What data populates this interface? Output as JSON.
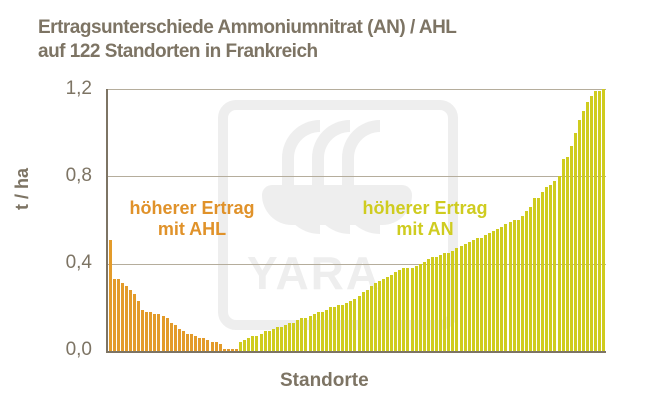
{
  "chart_data": {
    "type": "bar",
    "title": "Ertragsunterschiede Ammoniumnitrat  (AN) / AHL auf 122 Standorten in Frankreich",
    "title_lines": [
      "Ertragsunterschiede Ammoniumnitrat  (AN) / AHL",
      "auf 122 Standorten in Frankreich"
    ],
    "xlabel": "Standorte",
    "ylabel": "t / ha",
    "ylim": [
      0,
      1.2
    ],
    "yticks": [
      "0,0",
      "0,4",
      "0,8",
      "1,2"
    ],
    "grid": true,
    "n_sites": 122,
    "annotations": [
      {
        "text_lines": [
          "höherer Ertrag",
          "mit AHL"
        ],
        "color": "#e0922a"
      },
      {
        "text_lines": [
          "höherer Ertrag",
          "mit AN"
        ],
        "color": "#cfcc20"
      }
    ],
    "series": [
      {
        "name": "höherer Ertrag mit AHL",
        "color": "#e39b2a",
        "values": [
          0.51,
          0.33,
          0.33,
          0.31,
          0.3,
          0.28,
          0.26,
          0.23,
          0.19,
          0.18,
          0.18,
          0.17,
          0.17,
          0.16,
          0.15,
          0.13,
          0.12,
          0.1,
          0.09,
          0.08,
          0.08,
          0.07,
          0.06,
          0.06,
          0.05,
          0.04,
          0.04,
          0.03,
          0.01,
          0.01,
          0.01,
          0.01
        ]
      },
      {
        "name": "höherer Ertrag mit AN",
        "color": "#cfcc1e",
        "values": [
          0.04,
          0.05,
          0.06,
          0.07,
          0.07,
          0.08,
          0.09,
          0.09,
          0.1,
          0.11,
          0.11,
          0.12,
          0.13,
          0.13,
          0.14,
          0.15,
          0.15,
          0.16,
          0.17,
          0.18,
          0.18,
          0.19,
          0.2,
          0.2,
          0.21,
          0.21,
          0.22,
          0.23,
          0.24,
          0.25,
          0.27,
          0.28,
          0.3,
          0.31,
          0.32,
          0.33,
          0.34,
          0.35,
          0.36,
          0.37,
          0.38,
          0.38,
          0.38,
          0.39,
          0.4,
          0.41,
          0.42,
          0.43,
          0.43,
          0.44,
          0.45,
          0.45,
          0.46,
          0.47,
          0.48,
          0.49,
          0.5,
          0.51,
          0.52,
          0.52,
          0.53,
          0.54,
          0.55,
          0.56,
          0.57,
          0.58,
          0.59,
          0.6,
          0.6,
          0.62,
          0.64,
          0.66,
          0.7,
          0.7,
          0.73,
          0.75,
          0.76,
          0.78,
          0.8,
          0.88,
          0.89,
          0.94,
          1.0,
          1.06,
          1.1,
          1.14,
          1.17,
          1.19,
          1.19,
          1.2
        ]
      }
    ]
  },
  "watermark": {
    "brand": "YARA"
  }
}
